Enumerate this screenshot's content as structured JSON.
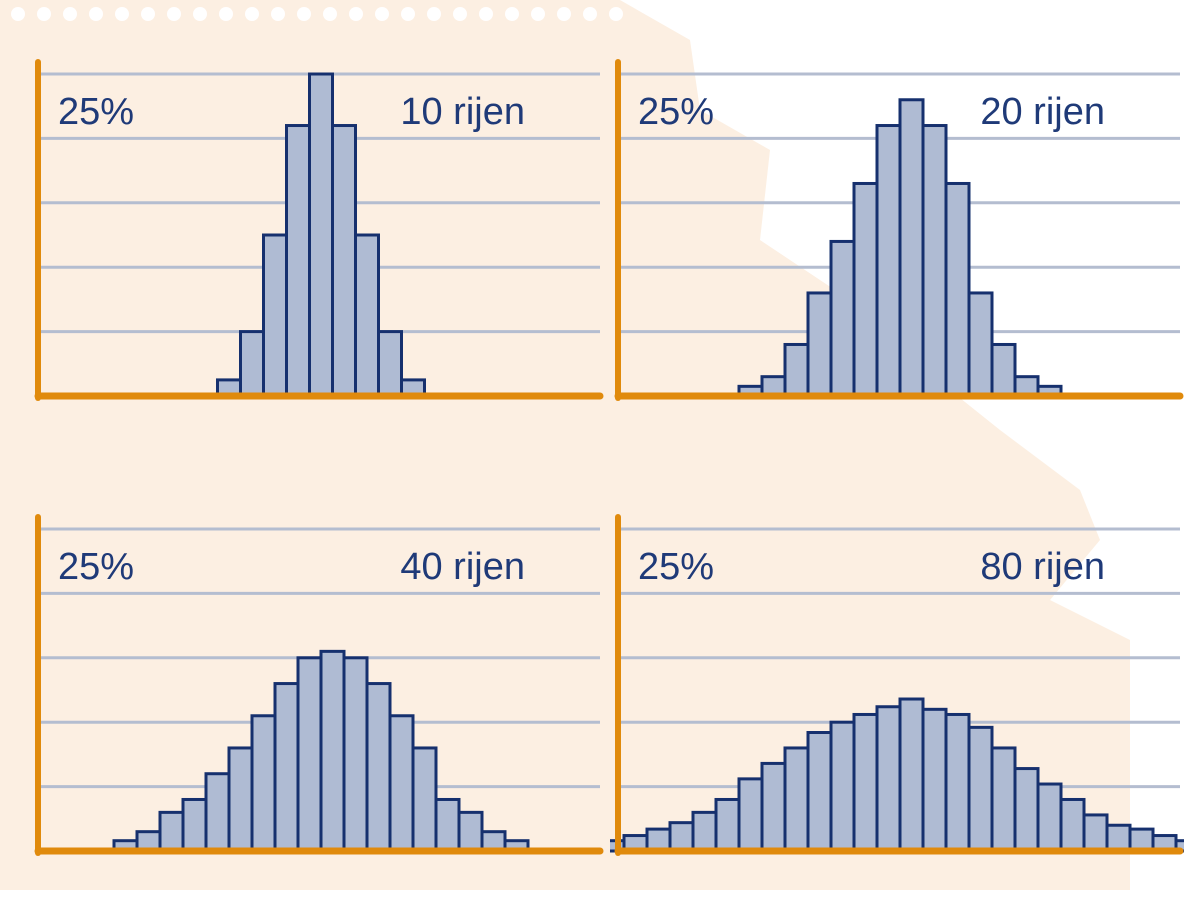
{
  "chart_data": [
    {
      "type": "bar",
      "title": "10 rijen",
      "y_tick_label": "25%",
      "ylim": [
        0,
        0.25
      ],
      "grid": true,
      "values": [
        0.0125,
        0.05,
        0.125,
        0.21,
        0.25,
        0.21,
        0.125,
        0.05,
        0.0125
      ]
    },
    {
      "type": "bar",
      "title": "20 rijen",
      "y_tick_label": "25%",
      "ylim": [
        0,
        0.25
      ],
      "grid": true,
      "values": [
        0.0075,
        0.015,
        0.04,
        0.08,
        0.12,
        0.165,
        0.21,
        0.23,
        0.21,
        0.165,
        0.08,
        0.04,
        0.015,
        0.0075
      ]
    },
    {
      "type": "bar",
      "title": "40 rijen",
      "y_tick_label": "25%",
      "ylim": [
        0,
        0.25
      ],
      "grid": true,
      "values": [
        0.008,
        0.015,
        0.03,
        0.04,
        0.06,
        0.08,
        0.105,
        0.13,
        0.15,
        0.155,
        0.15,
        0.13,
        0.105,
        0.08,
        0.04,
        0.03,
        0.015,
        0.008
      ]
    },
    {
      "type": "bar",
      "title": "80 rijen",
      "y_tick_label": "25%",
      "ylim": [
        0,
        0.25
      ],
      "grid": true,
      "values": [
        0.008,
        0.012,
        0.017,
        0.022,
        0.03,
        0.04,
        0.056,
        0.068,
        0.08,
        0.092,
        0.1,
        0.106,
        0.112,
        0.118,
        0.11,
        0.106,
        0.096,
        0.08,
        0.064,
        0.052,
        0.04,
        0.028,
        0.02,
        0.017,
        0.012,
        0.008
      ]
    }
  ],
  "colors": {
    "axis": "#e08a0c",
    "grid": "#b4bdd0",
    "bar_fill": "#afbbd3",
    "bar_stroke": "#16306e",
    "text": "#1f3a78",
    "paper": "#fcefe2",
    "tab_holes": "#ffffff"
  }
}
